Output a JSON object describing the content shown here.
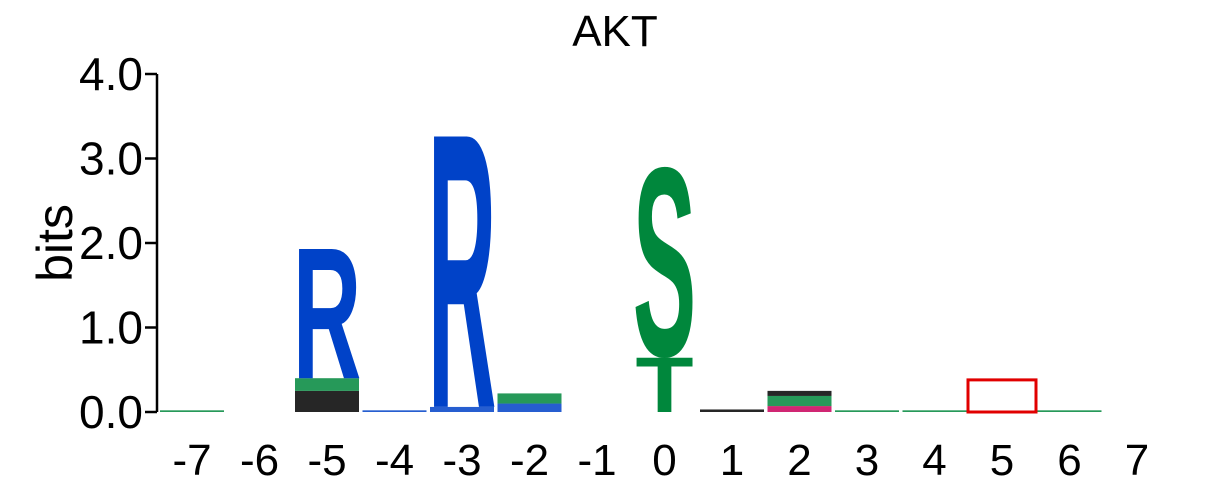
{
  "chart_data": {
    "type": "sequence-logo",
    "title": "AKT",
    "ylabel": "bits",
    "ylim": [
      0,
      4
    ],
    "yticks": [
      "0.0",
      "1.0",
      "2.0",
      "3.0",
      "4.0"
    ],
    "positions": [
      "-7",
      "-6",
      "-5",
      "-4",
      "-3",
      "-2",
      "-1",
      "0",
      "1",
      "2",
      "3",
      "4",
      "5",
      "6",
      "7"
    ],
    "colors": {
      "basic": "#0042C8",
      "polar": "#00873C",
      "hydrophobic": "#000000",
      "acidic": "#C8005A",
      "highlight": "#E10000"
    },
    "columns": [
      {
        "position": "-7",
        "stack": [
          {
            "letter": "",
            "bits": 0.02,
            "color": "#00873C"
          }
        ]
      },
      {
        "position": "-6",
        "stack": []
      },
      {
        "position": "-5",
        "stack": [
          {
            "letter": "",
            "bits": 0.25,
            "color": "#000000"
          },
          {
            "letter": "",
            "bits": 0.15,
            "color": "#00873C"
          },
          {
            "letter": "R",
            "bits": 1.6,
            "color": "#0042C8"
          }
        ]
      },
      {
        "position": "-4",
        "stack": [
          {
            "letter": "",
            "bits": 0.02,
            "color": "#0042C8"
          }
        ]
      },
      {
        "position": "-3",
        "stack": [
          {
            "letter": "",
            "bits": 0.06,
            "color": "#0042C8"
          },
          {
            "letter": "R",
            "bits": 3.35,
            "color": "#0042C8"
          }
        ]
      },
      {
        "position": "-2",
        "stack": [
          {
            "letter": "",
            "bits": 0.1,
            "color": "#0042C8"
          },
          {
            "letter": "",
            "bits": 0.12,
            "color": "#00873C"
          }
        ]
      },
      {
        "position": "-1",
        "stack": []
      },
      {
        "position": "0",
        "stack": [
          {
            "letter": "T",
            "bits": 0.67,
            "color": "#00873C"
          },
          {
            "letter": "S",
            "bits": 2.3,
            "color": "#00873C"
          }
        ]
      },
      {
        "position": "1",
        "stack": [
          {
            "letter": "",
            "bits": 0.03,
            "color": "#000000"
          }
        ]
      },
      {
        "position": "2",
        "stack": [
          {
            "letter": "",
            "bits": 0.07,
            "color": "#C8005A"
          },
          {
            "letter": "",
            "bits": 0.12,
            "color": "#00873C"
          },
          {
            "letter": "",
            "bits": 0.06,
            "color": "#000000"
          }
        ]
      },
      {
        "position": "3",
        "stack": [
          {
            "letter": "",
            "bits": 0.02,
            "color": "#00873C"
          }
        ]
      },
      {
        "position": "4",
        "stack": [
          {
            "letter": "",
            "bits": 0.02,
            "color": "#00873C"
          }
        ]
      },
      {
        "position": "5",
        "stack": [],
        "highlight": true,
        "highlight_bits": 0.38
      },
      {
        "position": "6",
        "stack": [
          {
            "letter": "",
            "bits": 0.02,
            "color": "#00873C"
          }
        ]
      },
      {
        "position": "7",
        "stack": []
      }
    ]
  }
}
